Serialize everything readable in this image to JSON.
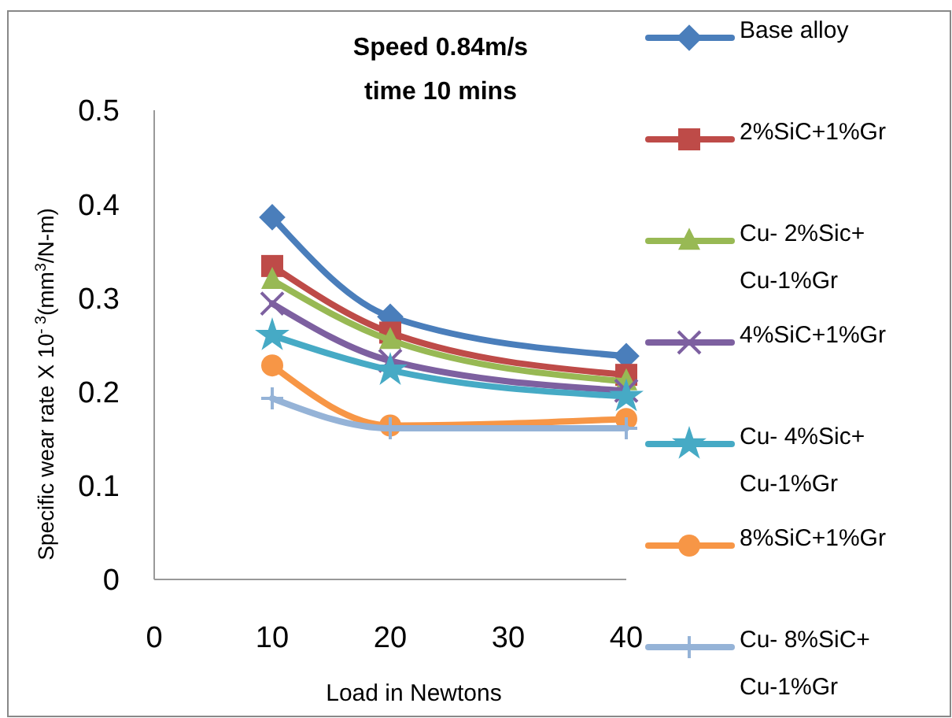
{
  "chart_data": {
    "type": "line",
    "title": "Speed 0.84m/s\ntime 10 mins",
    "xlabel": "Load in Newtons",
    "ylabel": "Specific wear rate X 10$^{- 3}$(mm$^{3}$/N-m)",
    "x": [
      10,
      20,
      40
    ],
    "xlim": [
      0,
      40
    ],
    "xticks": [
      0,
      10,
      20,
      30,
      40
    ],
    "ylim": [
      0,
      0.5
    ],
    "yticks": [
      0,
      0.1,
      0.2,
      0.3,
      0.4,
      0.5
    ],
    "grid": false,
    "legend": "right",
    "series": [
      {
        "name": "Base alloy",
        "color": "#4a7ebb",
        "marker": "diamond",
        "values": [
          0.386,
          0.28,
          0.238
        ]
      },
      {
        "name": "2%SiC+1%Gr",
        "color": "#be4b48",
        "marker": "square",
        "values": [
          0.334,
          0.263,
          0.218
        ]
      },
      {
        "name": "Cu- 2%Sic+ Cu-1%Gr",
        "color": "#98b954",
        "marker": "triangle",
        "values": [
          0.319,
          0.255,
          0.211
        ]
      },
      {
        "name": "4%SiC+1%Gr",
        "color": "#7d60a0",
        "marker": "cross",
        "values": [
          0.294,
          0.233,
          0.201
        ]
      },
      {
        "name": "Cu- 4%Sic+ Cu-1%Gr",
        "color": "#46aac5",
        "marker": "star",
        "values": [
          0.26,
          0.223,
          0.195
        ]
      },
      {
        "name": "8%SiC+1%Gr",
        "color": "#f79646",
        "marker": "circle",
        "values": [
          0.228,
          0.164,
          0.171
        ]
      },
      {
        "name": "Cu- 8%SiC+ Cu-1%Gr",
        "color": "#95b3d7",
        "marker": "plus",
        "values": [
          0.193,
          0.161,
          0.161
        ]
      }
    ]
  }
}
